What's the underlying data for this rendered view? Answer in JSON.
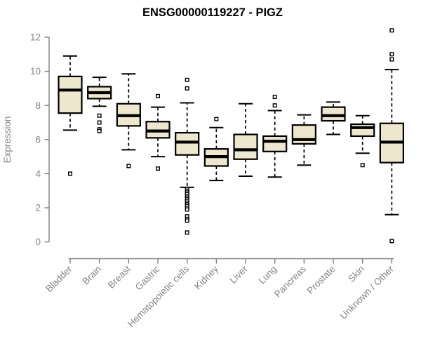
{
  "chart_data": {
    "type": "boxplot",
    "title": "ENSG00000119227 - PIGZ",
    "ylabel": "Expression",
    "xlabel": "",
    "ylim": [
      0,
      12
    ],
    "yticks": [
      0,
      2,
      4,
      6,
      8,
      10,
      12
    ],
    "grid": false,
    "legend": false,
    "categories": [
      "Bladder",
      "Brain",
      "Breast",
      "Gastric",
      "Hematopoietic cells",
      "Kidney",
      "Liver",
      "Lung",
      "Pancreas",
      "Prostate",
      "Skin",
      "Unknown / Other"
    ],
    "boxes": [
      {
        "category": "Bladder",
        "whisker_low": 6.55,
        "q1": 7.55,
        "median": 8.9,
        "q3": 9.7,
        "whisker_high": 10.9,
        "outliers": [
          4.0
        ]
      },
      {
        "category": "Brain",
        "whisker_low": 7.95,
        "q1": 8.4,
        "median": 8.75,
        "q3": 9.1,
        "whisker_high": 9.65,
        "outliers": [
          7.4,
          7.0,
          6.6,
          6.5
        ]
      },
      {
        "category": "Breast",
        "whisker_low": 5.4,
        "q1": 6.8,
        "median": 7.4,
        "q3": 8.1,
        "whisker_high": 9.85,
        "outliers": [
          4.45
        ]
      },
      {
        "category": "Gastric",
        "whisker_low": 5.0,
        "q1": 6.1,
        "median": 6.5,
        "q3": 7.05,
        "whisker_high": 7.9,
        "outliers": [
          8.55,
          4.3
        ]
      },
      {
        "category": "Hematopoietic cells",
        "whisker_low": 3.2,
        "q1": 5.1,
        "median": 5.85,
        "q3": 6.4,
        "whisker_high": 8.15,
        "outliers": [
          9.5,
          9.0,
          3.1,
          3.0,
          2.9,
          2.8,
          2.7,
          2.6,
          2.5,
          2.4,
          2.3,
          2.2,
          2.1,
          2.0,
          1.9,
          1.5,
          1.35,
          1.25,
          0.55
        ]
      },
      {
        "category": "Kidney",
        "whisker_low": 3.6,
        "q1": 4.45,
        "median": 5.0,
        "q3": 5.45,
        "whisker_high": 6.7,
        "outliers": [
          7.2
        ]
      },
      {
        "category": "Liver",
        "whisker_low": 3.85,
        "q1": 4.85,
        "median": 5.4,
        "q3": 6.3,
        "whisker_high": 8.1,
        "outliers": []
      },
      {
        "category": "Lung",
        "whisker_low": 3.8,
        "q1": 5.3,
        "median": 5.9,
        "q3": 6.2,
        "whisker_high": 7.7,
        "outliers": [
          8.5,
          8.0
        ]
      },
      {
        "category": "Pancreas",
        "whisker_low": 4.5,
        "q1": 5.75,
        "median": 6.0,
        "q3": 6.85,
        "whisker_high": 7.45,
        "outliers": []
      },
      {
        "category": "Prostate",
        "whisker_low": 6.3,
        "q1": 7.1,
        "median": 7.4,
        "q3": 7.9,
        "whisker_high": 8.2,
        "outliers": []
      },
      {
        "category": "Skin",
        "whisker_low": 5.2,
        "q1": 6.2,
        "median": 6.7,
        "q3": 6.9,
        "whisker_high": 7.4,
        "outliers": [
          4.5
        ]
      },
      {
        "category": "Unknown / Other",
        "whisker_low": 1.6,
        "q1": 4.65,
        "median": 5.85,
        "q3": 6.95,
        "whisker_high": 10.1,
        "outliers": [
          12.4,
          11.0,
          10.7,
          0.05
        ]
      }
    ],
    "colors": {
      "box_fill": "#EDE8CD",
      "box_border": "#000000",
      "median": "#000000",
      "whisker": "#000000",
      "outlier_stroke": "#000000",
      "outlier_fill": "#FFFFFF",
      "axis": "#7E7E7E",
      "labels": "#848484",
      "title": "#000000",
      "background": "#FFFFFF"
    }
  }
}
